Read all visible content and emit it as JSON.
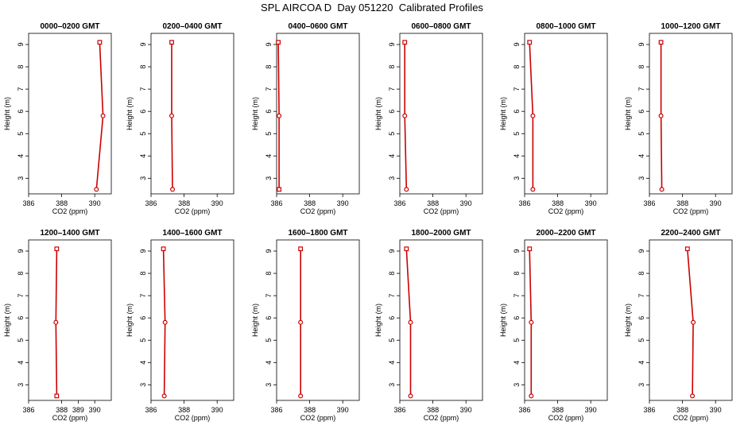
{
  "title": "SPL AIRCOA D  Day 051220  Calibrated Profiles",
  "chart_data": [
    {
      "type": "line",
      "title": "0000–0200 GMT",
      "xlabel": "CO2 (ppm)",
      "ylabel": "Height (m)",
      "xlim": [
        386,
        391
      ],
      "ylim": [
        2.3,
        9.5
      ],
      "xticks": [
        386,
        388,
        390
      ],
      "yticks": [
        3,
        4,
        5,
        6,
        7,
        8,
        9
      ],
      "color": "#cc0000",
      "series": [
        {
          "x": [
            390.1,
            390.5,
            390.3
          ],
          "y": [
            2.5,
            5.8,
            9.1
          ]
        }
      ]
    },
    {
      "type": "line",
      "title": "0200–0400 GMT",
      "xlabel": "CO2 (ppm)",
      "ylabel": "Height (m)",
      "xlim": [
        386,
        391
      ],
      "ylim": [
        2.3,
        9.5
      ],
      "xticks": [
        386,
        388,
        390
      ],
      "yticks": [
        3,
        4,
        5,
        6,
        7,
        8,
        9
      ],
      "color": "#cc0000",
      "series": [
        {
          "x": [
            387.3,
            387.25,
            387.25
          ],
          "y": [
            2.5,
            5.8,
            9.1
          ]
        }
      ]
    },
    {
      "type": "line",
      "title": "0400–0600 GMT",
      "xlabel": "CO2 (ppm)",
      "ylabel": "Height (m)",
      "xlim": [
        386,
        391
      ],
      "ylim": [
        2.3,
        9.5
      ],
      "xticks": [
        386,
        388,
        390
      ],
      "yticks": [
        3,
        4,
        5,
        6,
        7,
        8,
        9
      ],
      "color": "#cc0000",
      "series": [
        {
          "x": [
            386.15,
            386.15,
            386.1
          ],
          "y": [
            2.5,
            5.8,
            9.1
          ]
        }
      ]
    },
    {
      "type": "line",
      "title": "0600–0800 GMT",
      "xlabel": "CO2 (ppm)",
      "ylabel": "Height (m)",
      "xlim": [
        386,
        391
      ],
      "ylim": [
        2.3,
        9.5
      ],
      "xticks": [
        386,
        388,
        390
      ],
      "yticks": [
        3,
        4,
        5,
        6,
        7,
        8,
        9
      ],
      "color": "#cc0000",
      "series": [
        {
          "x": [
            386.4,
            386.3,
            386.3
          ],
          "y": [
            2.5,
            5.8,
            9.1
          ]
        }
      ]
    },
    {
      "type": "line",
      "title": "0800–1000 GMT",
      "xlabel": "CO2 (ppm)",
      "ylabel": "Height (m)",
      "xlim": [
        386,
        391
      ],
      "ylim": [
        2.3,
        9.5
      ],
      "xticks": [
        386,
        388,
        390
      ],
      "yticks": [
        3,
        4,
        5,
        6,
        7,
        8,
        9
      ],
      "color": "#cc0000",
      "series": [
        {
          "x": [
            386.5,
            386.5,
            386.3
          ],
          "y": [
            2.5,
            5.8,
            9.1
          ]
        }
      ]
    },
    {
      "type": "line",
      "title": "1000–1200 GMT",
      "xlabel": "CO2 (ppm)",
      "ylabel": "Height (m)",
      "xlim": [
        386,
        391
      ],
      "ylim": [
        2.3,
        9.5
      ],
      "xticks": [
        386,
        388,
        390
      ],
      "yticks": [
        3,
        4,
        5,
        6,
        7,
        8,
        9
      ],
      "color": "#cc0000",
      "series": [
        {
          "x": [
            386.75,
            386.7,
            386.7
          ],
          "y": [
            2.5,
            5.8,
            9.1
          ]
        }
      ]
    },
    {
      "type": "line",
      "title": "1200–1400 GMT",
      "xlabel": "CO2 (ppm)",
      "ylabel": "Height (m)",
      "xlim": [
        386,
        391
      ],
      "ylim": [
        2.3,
        9.5
      ],
      "xticks": [
        386,
        388,
        389,
        390
      ],
      "yticks": [
        3,
        4,
        5,
        6,
        7,
        8,
        9
      ],
      "color": "#cc0000",
      "series": [
        {
          "x": [
            387.7,
            387.65,
            387.7
          ],
          "y": [
            2.5,
            5.8,
            9.1
          ]
        }
      ]
    },
    {
      "type": "line",
      "title": "1400–1600 GMT",
      "xlabel": "CO2 (ppm)",
      "ylabel": "Height (m)",
      "xlim": [
        386,
        391
      ],
      "ylim": [
        2.3,
        9.5
      ],
      "xticks": [
        386,
        388,
        390
      ],
      "yticks": [
        3,
        4,
        5,
        6,
        7,
        8,
        9
      ],
      "color": "#cc0000",
      "series": [
        {
          "x": [
            386.8,
            386.85,
            386.75
          ],
          "y": [
            2.5,
            5.8,
            9.1
          ]
        }
      ]
    },
    {
      "type": "line",
      "title": "1600–1800 GMT",
      "xlabel": "CO2 (ppm)",
      "ylabel": "Height (m)",
      "xlim": [
        386,
        391
      ],
      "ylim": [
        2.3,
        9.5
      ],
      "xticks": [
        386,
        388,
        390
      ],
      "yticks": [
        3,
        4,
        5,
        6,
        7,
        8,
        9
      ],
      "color": "#cc0000",
      "series": [
        {
          "x": [
            387.45,
            387.45,
            387.45
          ],
          "y": [
            2.5,
            5.8,
            9.1
          ]
        }
      ]
    },
    {
      "type": "line",
      "title": "1800–2000 GMT",
      "xlabel": "CO2 (ppm)",
      "ylabel": "Height (m)",
      "xlim": [
        386,
        391
      ],
      "ylim": [
        2.3,
        9.5
      ],
      "xticks": [
        386,
        388,
        390
      ],
      "yticks": [
        3,
        4,
        5,
        6,
        7,
        8,
        9
      ],
      "color": "#cc0000",
      "series": [
        {
          "x": [
            386.65,
            386.65,
            386.4
          ],
          "y": [
            2.5,
            5.8,
            9.1
          ]
        }
      ]
    },
    {
      "type": "line",
      "title": "2000–2200 GMT",
      "xlabel": "CO2 (ppm)",
      "ylabel": "Height (m)",
      "xlim": [
        386,
        391
      ],
      "ylim": [
        2.3,
        9.5
      ],
      "xticks": [
        386,
        388,
        390
      ],
      "yticks": [
        3,
        4,
        5,
        6,
        7,
        8,
        9
      ],
      "color": "#cc0000",
      "series": [
        {
          "x": [
            386.4,
            386.4,
            386.3
          ],
          "y": [
            2.5,
            5.8,
            9.1
          ]
        }
      ]
    },
    {
      "type": "line",
      "title": "2200–2400 GMT",
      "xlabel": "CO2 (ppm)",
      "ylabel": "Height (m)",
      "xlim": [
        386,
        391
      ],
      "ylim": [
        2.3,
        9.5
      ],
      "xticks": [
        386,
        388,
        390
      ],
      "yticks": [
        3,
        4,
        5,
        6,
        7,
        8,
        9
      ],
      "color": "#cc0000",
      "series": [
        {
          "x": [
            388.6,
            388.65,
            388.3
          ],
          "y": [
            2.5,
            5.8,
            9.1
          ]
        }
      ]
    }
  ]
}
